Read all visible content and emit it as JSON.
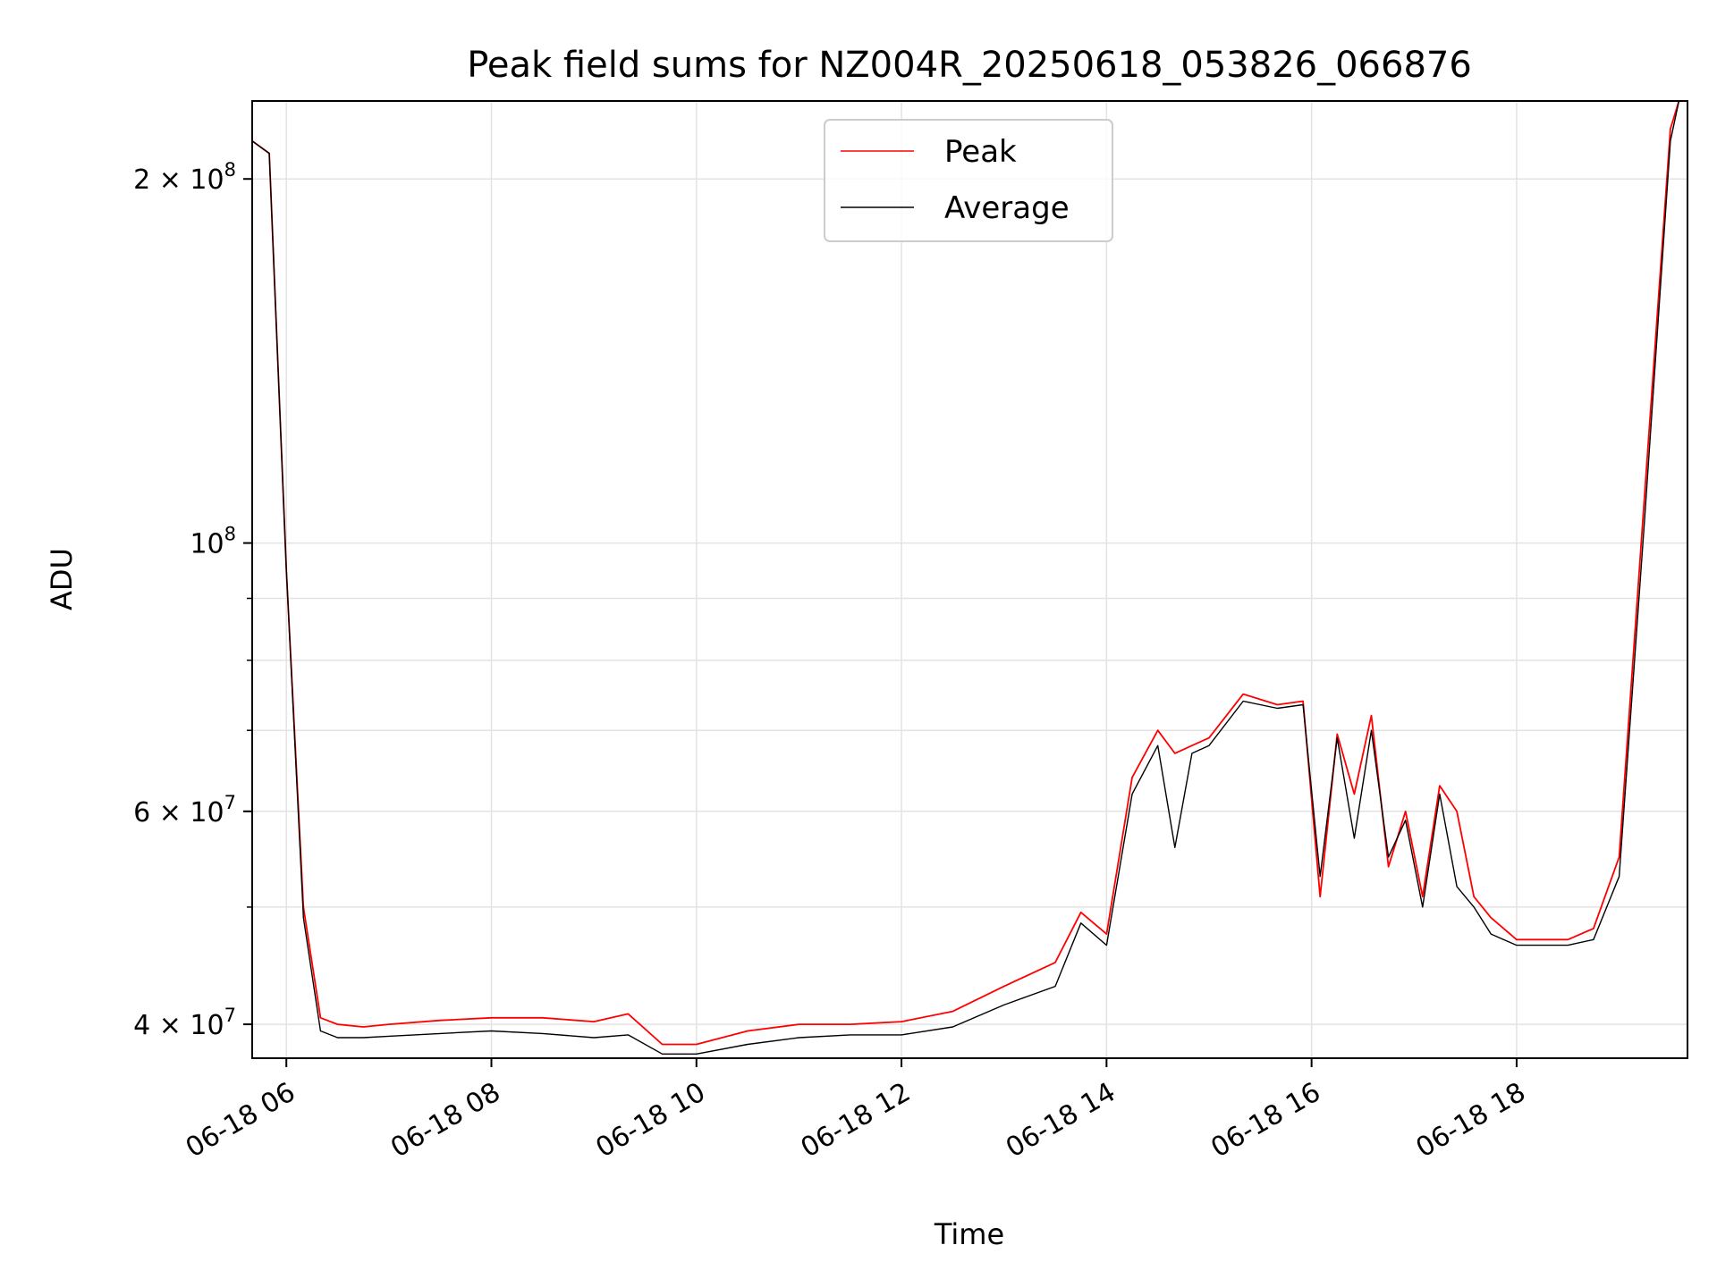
{
  "chart_data": {
    "type": "line",
    "title": "Peak field sums for NZ004R_20250618_053826_066876",
    "xlabel": "Time",
    "ylabel": "ADU",
    "y_scale": "log",
    "ylim": [
      37500000,
      232000000
    ],
    "xlim": [
      "2025-06-18 05:40",
      "2025-06-18 19:40"
    ],
    "x_ticks": [
      "06-18 06",
      "06-18 08",
      "06-18 10",
      "06-18 12",
      "06-18 14",
      "06-18 16",
      "06-18 18"
    ],
    "y_ticks": [
      {
        "value": 40000000,
        "label_mantissa": "4",
        "label_exp": "7"
      },
      {
        "value": 60000000,
        "label_mantissa": "6",
        "label_exp": "7"
      },
      {
        "value": 100000000,
        "label_mantissa": "10",
        "label_exp": "8"
      },
      {
        "value": 200000000,
        "label_mantissa": "2",
        "label_exp": "8"
      }
    ],
    "y_minor_grid": [
      50000000,
      70000000,
      80000000,
      90000000
    ],
    "grid": true,
    "legend_position": "upper-center",
    "series": [
      {
        "name": "Peak",
        "color": "#ff0000",
        "x": [
          "2025-06-18 05:40",
          "2025-06-18 05:50",
          "2025-06-18 06:00",
          "2025-06-18 06:10",
          "2025-06-18 06:20",
          "2025-06-18 06:30",
          "2025-06-18 06:45",
          "2025-06-18 07:00",
          "2025-06-18 07:30",
          "2025-06-18 08:00",
          "2025-06-18 08:30",
          "2025-06-18 09:00",
          "2025-06-18 09:20",
          "2025-06-18 09:40",
          "2025-06-18 10:00",
          "2025-06-18 10:30",
          "2025-06-18 11:00",
          "2025-06-18 11:30",
          "2025-06-18 12:00",
          "2025-06-18 12:30",
          "2025-06-18 13:00",
          "2025-06-18 13:30",
          "2025-06-18 13:45",
          "2025-06-18 14:00",
          "2025-06-18 14:15",
          "2025-06-18 14:30",
          "2025-06-18 14:40",
          "2025-06-18 14:50",
          "2025-06-18 15:00",
          "2025-06-18 15:20",
          "2025-06-18 15:40",
          "2025-06-18 15:55",
          "2025-06-18 16:05",
          "2025-06-18 16:15",
          "2025-06-18 16:25",
          "2025-06-18 16:35",
          "2025-06-18 16:45",
          "2025-06-18 16:55",
          "2025-06-18 17:05",
          "2025-06-18 17:15",
          "2025-06-18 17:25",
          "2025-06-18 17:35",
          "2025-06-18 17:45",
          "2025-06-18 18:00",
          "2025-06-18 18:15",
          "2025-06-18 18:30",
          "2025-06-18 18:45",
          "2025-06-18 19:00",
          "2025-06-18 19:15",
          "2025-06-18 19:30",
          "2025-06-18 19:35"
        ],
        "y": [
          215000000,
          210000000,
          95000000,
          50000000,
          40500000,
          40000000,
          39800000,
          40000000,
          40300000,
          40500000,
          40500000,
          40200000,
          40800000,
          38500000,
          38500000,
          39500000,
          40000000,
          40000000,
          40200000,
          41000000,
          43000000,
          45000000,
          49500000,
          47500000,
          64000000,
          70000000,
          67000000,
          68000000,
          69000000,
          75000000,
          73500000,
          74000000,
          51000000,
          69500000,
          62000000,
          72000000,
          54000000,
          60000000,
          51000000,
          63000000,
          60000000,
          51000000,
          49000000,
          47000000,
          47000000,
          47000000,
          48000000,
          55000000,
          110000000,
          220000000,
          232000000
        ]
      },
      {
        "name": "Average",
        "color": "#000000",
        "x": [
          "2025-06-18 05:40",
          "2025-06-18 05:50",
          "2025-06-18 06:00",
          "2025-06-18 06:10",
          "2025-06-18 06:20",
          "2025-06-18 06:30",
          "2025-06-18 06:45",
          "2025-06-18 07:00",
          "2025-06-18 07:30",
          "2025-06-18 08:00",
          "2025-06-18 08:30",
          "2025-06-18 09:00",
          "2025-06-18 09:20",
          "2025-06-18 09:40",
          "2025-06-18 10:00",
          "2025-06-18 10:30",
          "2025-06-18 11:00",
          "2025-06-18 11:30",
          "2025-06-18 12:00",
          "2025-06-18 12:30",
          "2025-06-18 13:00",
          "2025-06-18 13:30",
          "2025-06-18 13:45",
          "2025-06-18 14:00",
          "2025-06-18 14:15",
          "2025-06-18 14:30",
          "2025-06-18 14:40",
          "2025-06-18 14:50",
          "2025-06-18 15:00",
          "2025-06-18 15:20",
          "2025-06-18 15:40",
          "2025-06-18 15:55",
          "2025-06-18 16:05",
          "2025-06-18 16:15",
          "2025-06-18 16:25",
          "2025-06-18 16:35",
          "2025-06-18 16:45",
          "2025-06-18 16:55",
          "2025-06-18 17:05",
          "2025-06-18 17:15",
          "2025-06-18 17:25",
          "2025-06-18 17:35",
          "2025-06-18 17:45",
          "2025-06-18 18:00",
          "2025-06-18 18:15",
          "2025-06-18 18:30",
          "2025-06-18 18:45",
          "2025-06-18 19:00",
          "2025-06-18 19:15",
          "2025-06-18 19:30",
          "2025-06-18 19:35"
        ],
        "y": [
          215000000,
          210000000,
          95000000,
          49000000,
          39500000,
          39000000,
          39000000,
          39100000,
          39300000,
          39500000,
          39300000,
          39000000,
          39200000,
          37800000,
          37800000,
          38500000,
          39000000,
          39200000,
          39200000,
          39800000,
          41500000,
          43000000,
          48500000,
          46500000,
          62000000,
          68000000,
          56000000,
          67000000,
          68000000,
          74000000,
          73000000,
          73500000,
          53000000,
          69000000,
          57000000,
          70000000,
          55000000,
          59000000,
          50000000,
          62000000,
          52000000,
          50000000,
          47500000,
          46500000,
          46500000,
          46500000,
          47000000,
          53000000,
          105000000,
          215000000,
          232000000
        ]
      }
    ]
  }
}
